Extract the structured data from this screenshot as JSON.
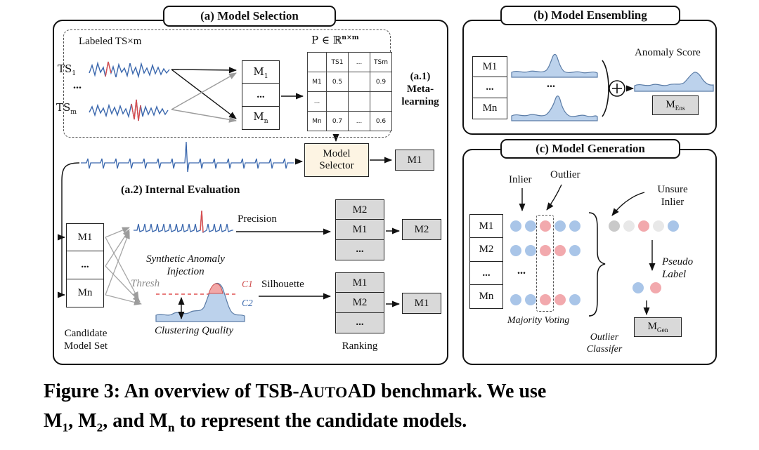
{
  "panel_a": {
    "title": "(a) Model Selection",
    "labeled_ts": "Labeled TS×m",
    "ts1": {
      "base": "TS",
      "sub": "1"
    },
    "tsm": {
      "base": "TS",
      "sub": "m"
    },
    "ts_dots": "...",
    "meta_models": {
      "top": {
        "base": "M",
        "sub": "1"
      },
      "mid": "...",
      "bot": {
        "base": "M",
        "sub": "n"
      }
    },
    "p_label": {
      "base": "P ∈ ℝ",
      "sup": "n×m"
    },
    "matrix": {
      "headers": [
        "TS1",
        "...",
        "TSm"
      ],
      "rows": [
        {
          "label": "M1",
          "cells": [
            "0.5",
            "",
            "0.9"
          ]
        },
        {
          "label": "...",
          "cells": [
            "",
            "",
            ""
          ]
        },
        {
          "label": "Mn",
          "cells": [
            "0.7",
            "...",
            "0.6"
          ]
        }
      ]
    },
    "a1_label": "(a.1)\nMeta-\nlearning",
    "model_selector": "Model\nSelector",
    "selector_result": "M1",
    "a2_label": "(a.2) Internal Evaluation",
    "candidate_models": [
      "M1",
      "...",
      "Mn"
    ],
    "candidate_caption": "Candidate\nModel Set",
    "injection_label": "Synthetic Anomaly\nInjection",
    "precision": "Precision",
    "precision_ranking": [
      "M2",
      "M1",
      "..."
    ],
    "precision_result": "M2",
    "thresh": "Thresh",
    "c1": "C1",
    "c2": "C2",
    "clustering_label": "Clustering Quality",
    "silhouette": "Silhouette",
    "silhouette_ranking": [
      "M1",
      "M2",
      "..."
    ],
    "silhouette_result": "M1",
    "ranking_label": "Ranking"
  },
  "panel_b": {
    "title": "(b) Model Ensembling",
    "models": [
      "M1",
      "...",
      "Mn"
    ],
    "series_dots": "...",
    "anomaly_score": "Anomaly Score",
    "m_ens": {
      "base": "M",
      "sub": "Ens"
    }
  },
  "panel_c": {
    "title": "(c) Model Generation",
    "inlier": "Inlier",
    "outlier": "Outlier",
    "unsure_inlier": "Unsure\nInlier",
    "models": [
      "M1",
      "M2",
      "...",
      "Mn"
    ],
    "row_dots": "...",
    "dot_rows": {
      "m1": [
        "blue",
        "blue",
        "red",
        "blue",
        "blue"
      ],
      "m2": [
        "blue",
        "blue",
        "red",
        "red",
        "blue"
      ],
      "mn": [
        "blue",
        "blue",
        "red",
        "red",
        "blue"
      ]
    },
    "unsure_dots": [
      "gray",
      "lightgray",
      "red",
      "lightgray",
      "blue"
    ],
    "pseudo_dots": [
      "blue",
      "red"
    ],
    "majority_voting": "Majority Voting",
    "pseudo_label": "Pseudo\nLabel",
    "outlier_classifier": "Outlier\nClassifer",
    "m_gen": {
      "base": "M",
      "sub": "Gen"
    }
  },
  "caption": {
    "l1_pre": "Figure 3: An overview of TSB-A",
    "l1_sc": "UTO",
    "l1_post": "AD benchmark. We use",
    "l2_p0": "M",
    "l2_s0": "1",
    "l2_p1": ", M",
    "l2_s1": "2",
    "l2_p2": ", and M",
    "l2_s2": "n",
    "l2_p3": " to represent the candidate models."
  },
  "colors": {
    "series_blue": "#3a67ad",
    "fill_blue": "#bcd2ec",
    "anomaly_red": "#d94f4f",
    "box_gray": "#d9d9d9",
    "selector_cream": "#fdf4e3"
  }
}
